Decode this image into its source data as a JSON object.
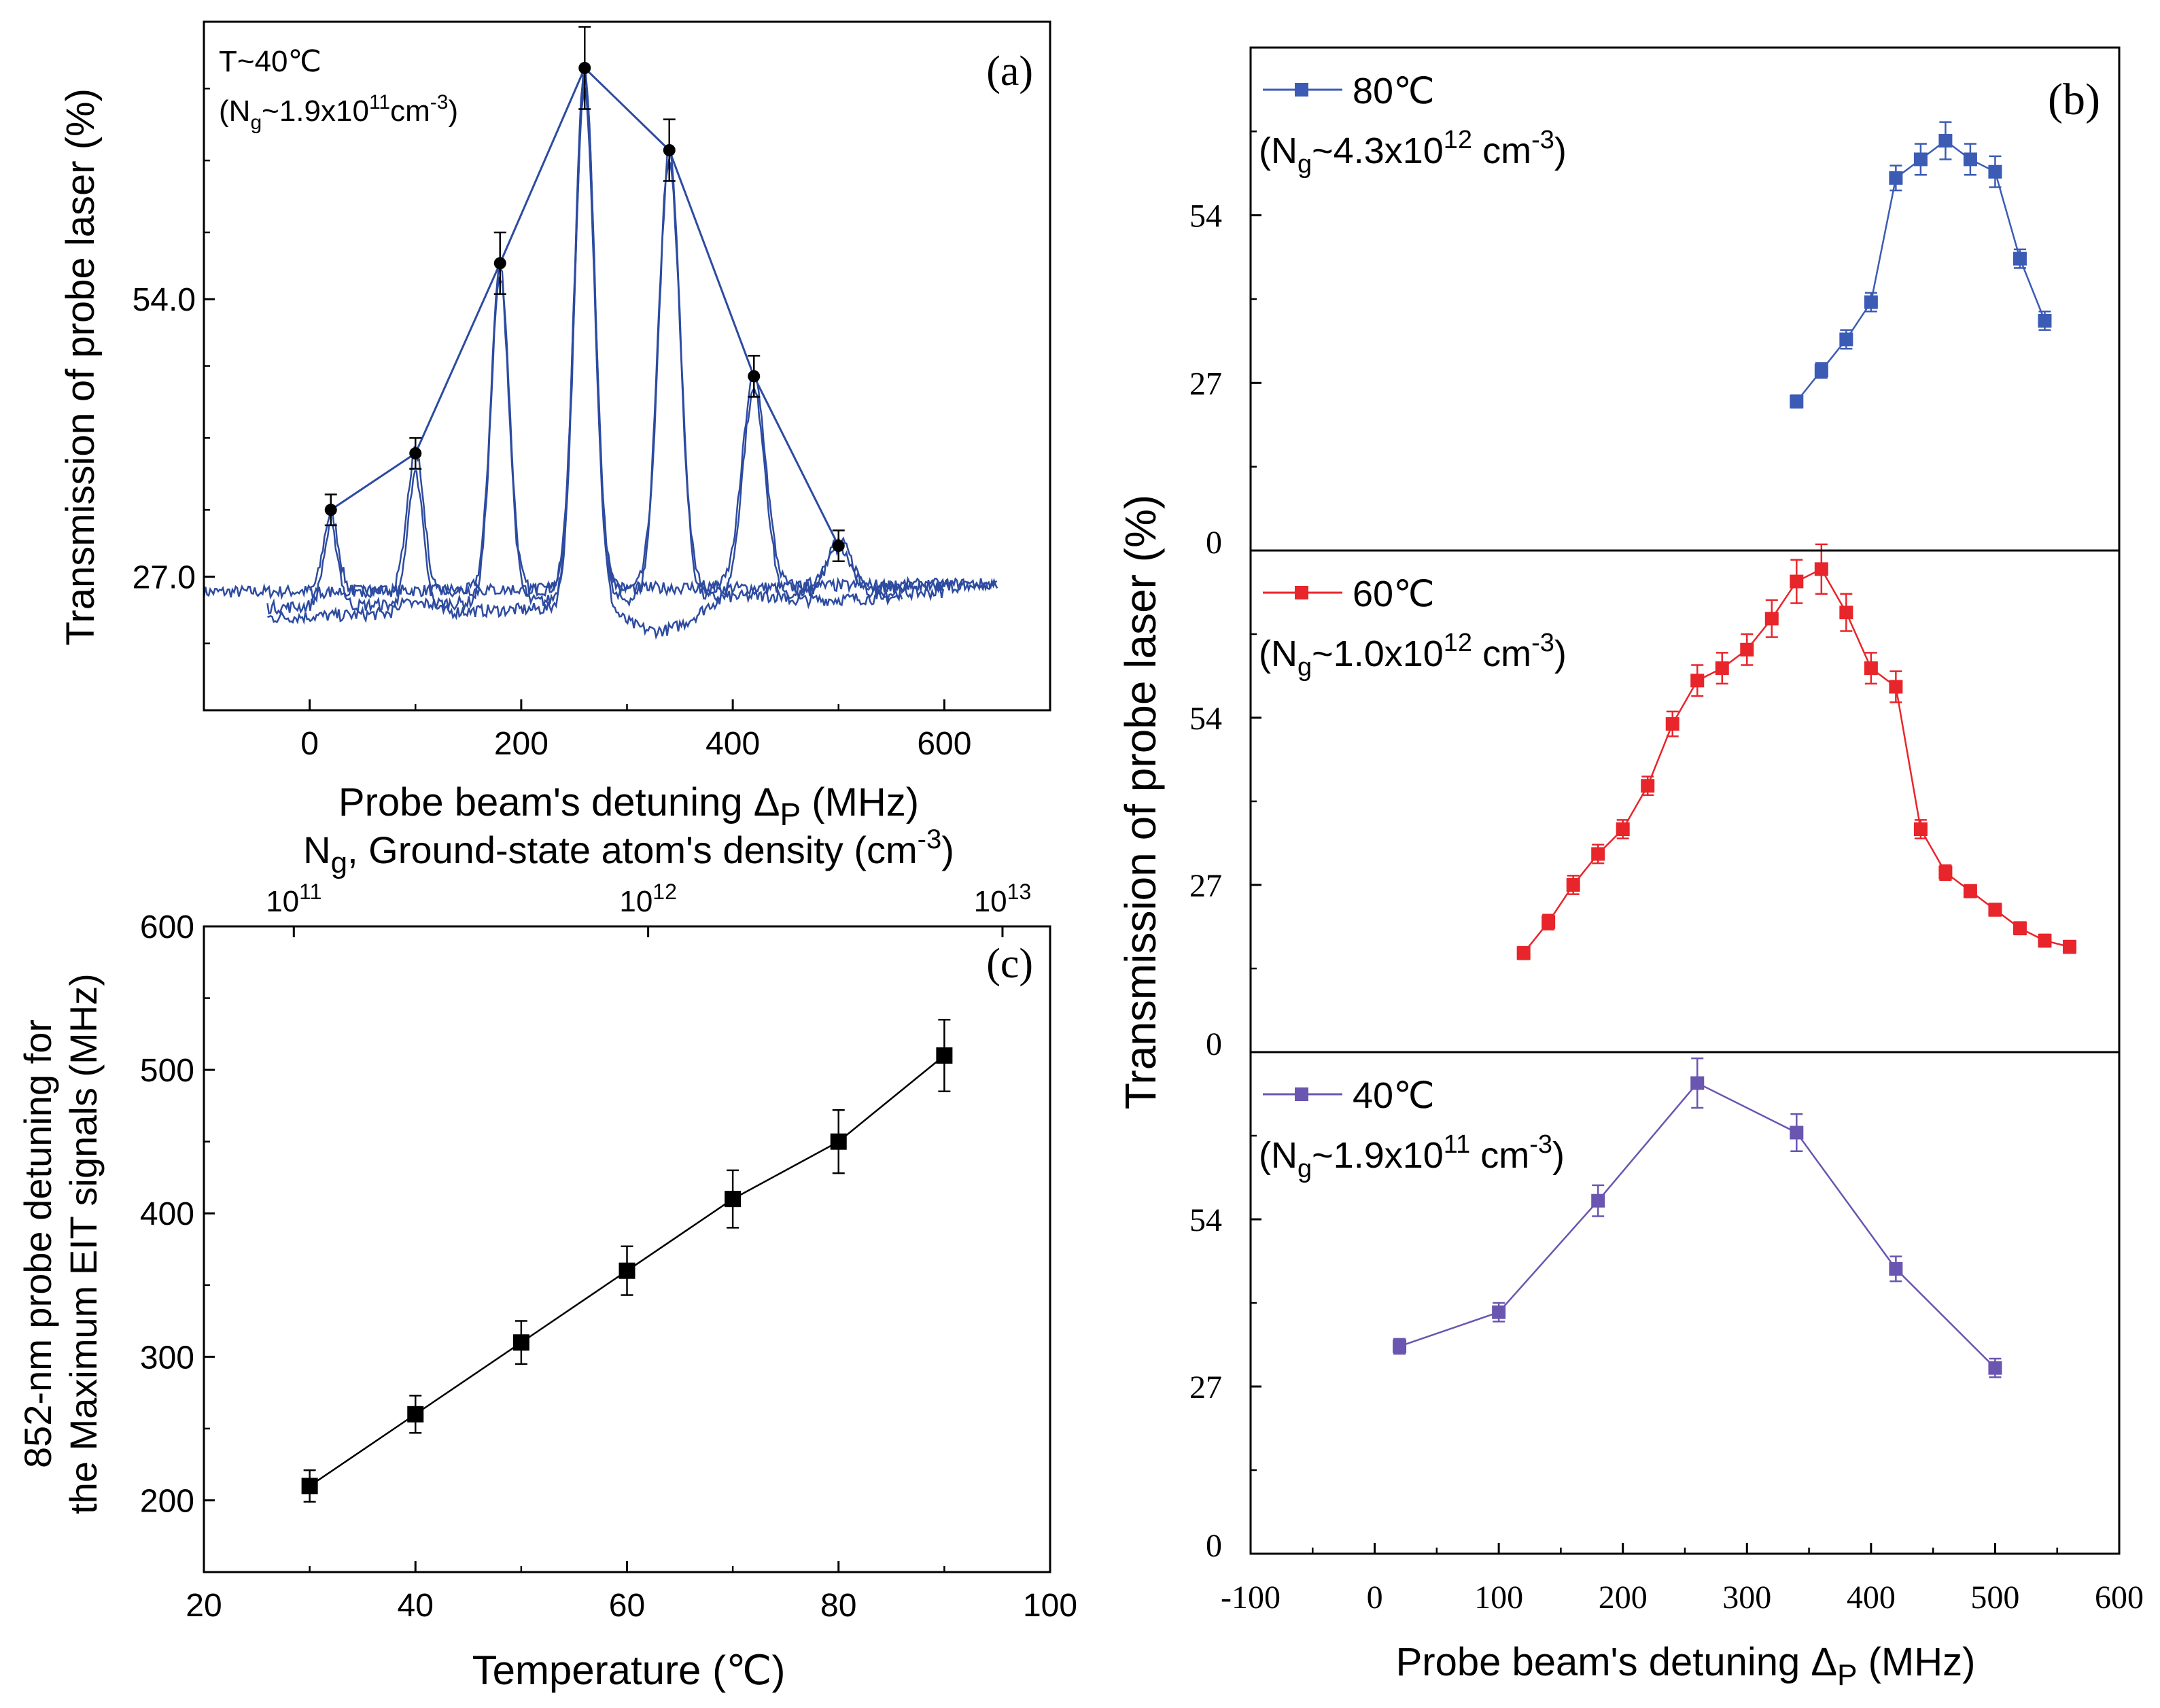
{
  "colors": {
    "blue": "#2d4ba0",
    "blue_b": "#3b5bb5",
    "red": "#e8252a",
    "purple": "#6a55b0",
    "black": "#000000"
  },
  "chart_data": [
    {
      "id": "a",
      "type": "line",
      "panel_label": "(a)",
      "annotation_temp": "T~40℃",
      "annotation_density": {
        "prefix": "(N",
        "sub": "g",
        "mid": "~1.9x10",
        "sup": "11",
        "unit": "cm",
        "unit_sup": "-3",
        "suffix": ")"
      },
      "xlabel": {
        "main": "Probe beam's detuning Δ",
        "sub": "P",
        "tail": " (MHz)"
      },
      "ylabel": "Transmission of probe laser (%)",
      "xlim": [
        -100,
        700
      ],
      "ylim": [
        14,
        81
      ],
      "xticks": [
        0,
        200,
        400,
        600
      ],
      "xtick_labels": [
        "0",
        "200",
        "400",
        "600"
      ],
      "yticks": [
        27,
        54
      ],
      "ytick_labels": [
        "27.0",
        "54.0"
      ],
      "series": [
        {
          "name": "peak envelope",
          "x": [
            20,
            100,
            180,
            260,
            340,
            420,
            500
          ],
          "y": [
            33.5,
            39.0,
            57.5,
            76.5,
            68.5,
            46.5,
            30.0
          ],
          "err": [
            1.5,
            1.5,
            3.0,
            4.0,
            3.0,
            2.0,
            1.5
          ]
        }
      ],
      "spectra_peaks": {
        "x": [
          20,
          100,
          180,
          260,
          340,
          420,
          500
        ],
        "heights": [
          33,
          39,
          57,
          76,
          68,
          46,
          30
        ],
        "baseline": 25.5
      }
    },
    {
      "id": "c",
      "type": "line",
      "panel_label": "(c)",
      "xlabel": "Temperature (℃)",
      "ylabel_line1": "852-nm probe detuning for",
      "ylabel_line2": "the Maximum EIT signals (MHz)",
      "top_axis_label": {
        "main": "N",
        "sub": "g",
        "mid": ", Ground-state atom's density (cm",
        "sup": "-3",
        "tail": ")"
      },
      "top_ticks": [
        {
          "base": "10",
          "exp": "11",
          "temp": 28.5
        },
        {
          "base": "10",
          "exp": "12",
          "temp": 62
        },
        {
          "base": "10",
          "exp": "13",
          "temp": 95.5
        }
      ],
      "xlim": [
        20,
        100
      ],
      "ylim": [
        150,
        600
      ],
      "xticks": [
        20,
        40,
        60,
        80,
        100
      ],
      "xtick_labels": [
        "20",
        "40",
        "60",
        "80",
        "100"
      ],
      "yticks": [
        200,
        300,
        400,
        500,
        600
      ],
      "ytick_labels": [
        "200",
        "300",
        "400",
        "500",
        "600"
      ],
      "series": [
        {
          "name": "max EIT detuning",
          "x": [
            30,
            40,
            50,
            60,
            70,
            80,
            90
          ],
          "y": [
            210,
            260,
            310,
            360,
            410,
            450,
            510
          ],
          "err": [
            11,
            13,
            15,
            17,
            20,
            22,
            25
          ]
        }
      ]
    },
    {
      "id": "b",
      "type": "line",
      "panel_label": "(b)",
      "xlabel": {
        "main": "Probe beam's detuning Δ",
        "sub": "P",
        "tail": " (MHz)"
      },
      "ylabel": "Transmission of probe laser (%)",
      "xlim": [
        -100,
        600
      ],
      "xticks": [
        -100,
        0,
        100,
        200,
        300,
        400,
        500,
        600
      ],
      "xtick_labels": [
        "-100",
        "0",
        "100",
        "200",
        "300",
        "400",
        "500",
        "600"
      ],
      "subpanels": [
        {
          "legend": "80℃",
          "density": {
            "prefix": "(N",
            "sub": "g",
            "mid": "~4.3x10",
            "sup": "12",
            "unit": " cm",
            "unit_sup": "-3",
            "suffix": ")"
          },
          "color_key": "blue_b",
          "ylim": [
            0,
            81
          ],
          "yticks": [
            0,
            27,
            54
          ],
          "ytick_labels": [
            "0",
            "27",
            "54"
          ],
          "x": [
            340,
            360,
            380,
            400,
            420,
            440,
            460,
            480,
            500,
            520,
            540
          ],
          "y": [
            24,
            29,
            34,
            40,
            60,
            63,
            66,
            63,
            61,
            47,
            37
          ],
          "err": [
            1,
            1.2,
            1.5,
            1.5,
            2,
            2.5,
            3,
            2.5,
            2.5,
            1.5,
            1.5
          ]
        },
        {
          "legend": "60℃",
          "density": {
            "prefix": "(N",
            "sub": "g",
            "mid": "~1.0x10",
            "sup": "12",
            "unit": " cm",
            "unit_sup": "-3",
            "suffix": ")"
          },
          "color_key": "red",
          "ylim": [
            0,
            81
          ],
          "yticks": [
            0,
            27,
            54
          ],
          "ytick_labels": [
            "0",
            "27",
            "54"
          ],
          "x": [
            120,
            140,
            160,
            180,
            200,
            220,
            240,
            260,
            280,
            300,
            320,
            340,
            360,
            380,
            400,
            420,
            440,
            460,
            480,
            500,
            520,
            540,
            560
          ],
          "y": [
            16,
            21,
            27,
            32,
            36,
            43,
            53,
            60,
            62,
            65,
            70,
            76,
            78,
            71,
            62,
            59,
            36,
            29,
            26,
            23,
            20,
            18,
            17
          ],
          "err": [
            1,
            1.2,
            1.5,
            1.5,
            1.5,
            1.5,
            2,
            2.5,
            2.5,
            2.5,
            3,
            3.5,
            4,
            3,
            2.5,
            2.5,
            1.5,
            1.2,
            1,
            1,
            1,
            1,
            1
          ]
        },
        {
          "legend": "40℃",
          "density": {
            "prefix": "(N",
            "sub": "g",
            "mid": "~1.9x10",
            "sup": "11",
            "unit": " cm",
            "unit_sup": "-3",
            "suffix": ")"
          },
          "color_key": "purple",
          "ylim": [
            0,
            81
          ],
          "yticks": [
            0,
            27,
            54
          ],
          "ytick_labels": [
            "0",
            "27",
            "54"
          ],
          "x": [
            20,
            100,
            180,
            260,
            340,
            420,
            500
          ],
          "y": [
            33.5,
            39,
            57,
            76,
            68,
            46,
            30
          ],
          "err": [
            1.2,
            1.5,
            2.5,
            4,
            3,
            2,
            1.5
          ]
        }
      ]
    }
  ]
}
